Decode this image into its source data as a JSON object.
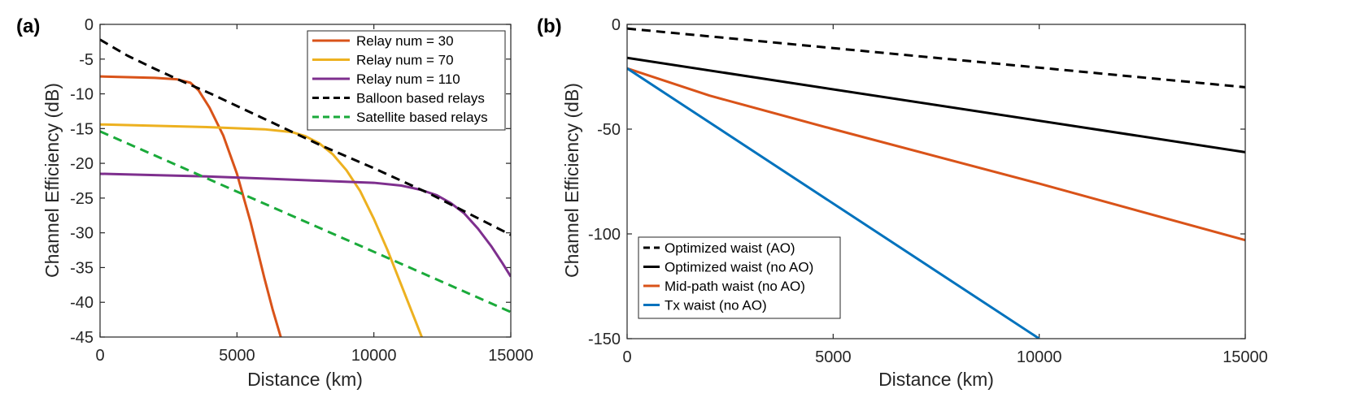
{
  "chart_data": [
    {
      "panel_label": "(a)",
      "type": "line",
      "xlabel": "Distance (km)",
      "ylabel": "Channel Efficiency (dB)",
      "xlim": [
        0,
        15000
      ],
      "ylim": [
        -45,
        0
      ],
      "xticks": [
        0,
        5000,
        10000,
        15000
      ],
      "yticks": [
        0,
        -5,
        -10,
        -15,
        -20,
        -25,
        -30,
        -35,
        -40,
        -45
      ],
      "legend_position": "top-right",
      "series": [
        {
          "name": "Relay num = 30",
          "color": "#D95319",
          "dash": "solid",
          "x": [
            0,
            1000,
            2000,
            2800,
            3300,
            3600,
            4000,
            4500,
            5000,
            5500,
            6000,
            6300,
            6600
          ],
          "y": [
            -7.5,
            -7.6,
            -7.7,
            -7.9,
            -8.4,
            -9.5,
            -12,
            -16,
            -21.5,
            -28.5,
            -36.5,
            -41,
            -45
          ]
        },
        {
          "name": "Relay num = 70",
          "color": "#EDB120",
          "dash": "solid",
          "x": [
            0,
            2000,
            4000,
            6000,
            7000,
            7500,
            8000,
            8500,
            9000,
            9500,
            10000,
            10500,
            11000,
            11500,
            11750
          ],
          "y": [
            -14.4,
            -14.6,
            -14.8,
            -15.1,
            -15.5,
            -16.1,
            -17.1,
            -18.7,
            -21,
            -24,
            -28,
            -32.5,
            -37.5,
            -42.5,
            -45
          ]
        },
        {
          "name": "Relay num = 110",
          "color": "#7E2F8E",
          "dash": "solid",
          "x": [
            0,
            2000,
            4000,
            6000,
            8000,
            10000,
            11000,
            11700,
            12300,
            12800,
            13300,
            13800,
            14300,
            14700,
            15000
          ],
          "y": [
            -21.5,
            -21.7,
            -21.9,
            -22.2,
            -22.5,
            -22.8,
            -23.2,
            -23.8,
            -24.6,
            -25.7,
            -27.2,
            -29.4,
            -32,
            -34.4,
            -36.3
          ]
        },
        {
          "name": "Balloon based relays",
          "color": "#000000",
          "dash": "dashed",
          "x": [
            0,
            1000,
            2000,
            3000,
            4000,
            6000,
            8000,
            10000,
            12000,
            14000,
            15000
          ],
          "y": [
            -2.2,
            -4.5,
            -6.4,
            -8.2,
            -9.9,
            -13.6,
            -17.3,
            -20.7,
            -24.3,
            -28.3,
            -30.3
          ]
        },
        {
          "name": "Satellite based relays",
          "color": "#1AAA3A",
          "dash": "dashed",
          "x": [
            0,
            15000
          ],
          "y": [
            -15.4,
            -41.4
          ]
        }
      ]
    },
    {
      "panel_label": "(b)",
      "type": "line",
      "xlabel": "Distance (km)",
      "ylabel": "Channel Efficiency (dB)",
      "xlim": [
        0,
        15000
      ],
      "ylim": [
        -150,
        0
      ],
      "xticks": [
        0,
        5000,
        10000,
        15000
      ],
      "yticks": [
        0,
        -50,
        -100,
        -150
      ],
      "legend_position": "bottom-left",
      "series": [
        {
          "name": "Optimized waist (AO)",
          "color": "#000000",
          "dash": "dashed",
          "x": [
            0,
            15000
          ],
          "y": [
            -2,
            -30
          ]
        },
        {
          "name": "Optimized waist (no AO)",
          "color": "#000000",
          "dash": "solid",
          "x": [
            0,
            15000
          ],
          "y": [
            -16,
            -61
          ]
        },
        {
          "name": "Mid-path waist (no AO)",
          "color": "#D95319",
          "dash": "solid",
          "x": [
            0,
            2000,
            5000,
            10000,
            15000
          ],
          "y": [
            -21,
            -34,
            -50,
            -76,
            -103
          ]
        },
        {
          "name": "Tx waist (no AO)",
          "color": "#0072BD",
          "dash": "solid",
          "x": [
            0,
            10000
          ],
          "y": [
            -21,
            -150
          ]
        }
      ]
    }
  ]
}
